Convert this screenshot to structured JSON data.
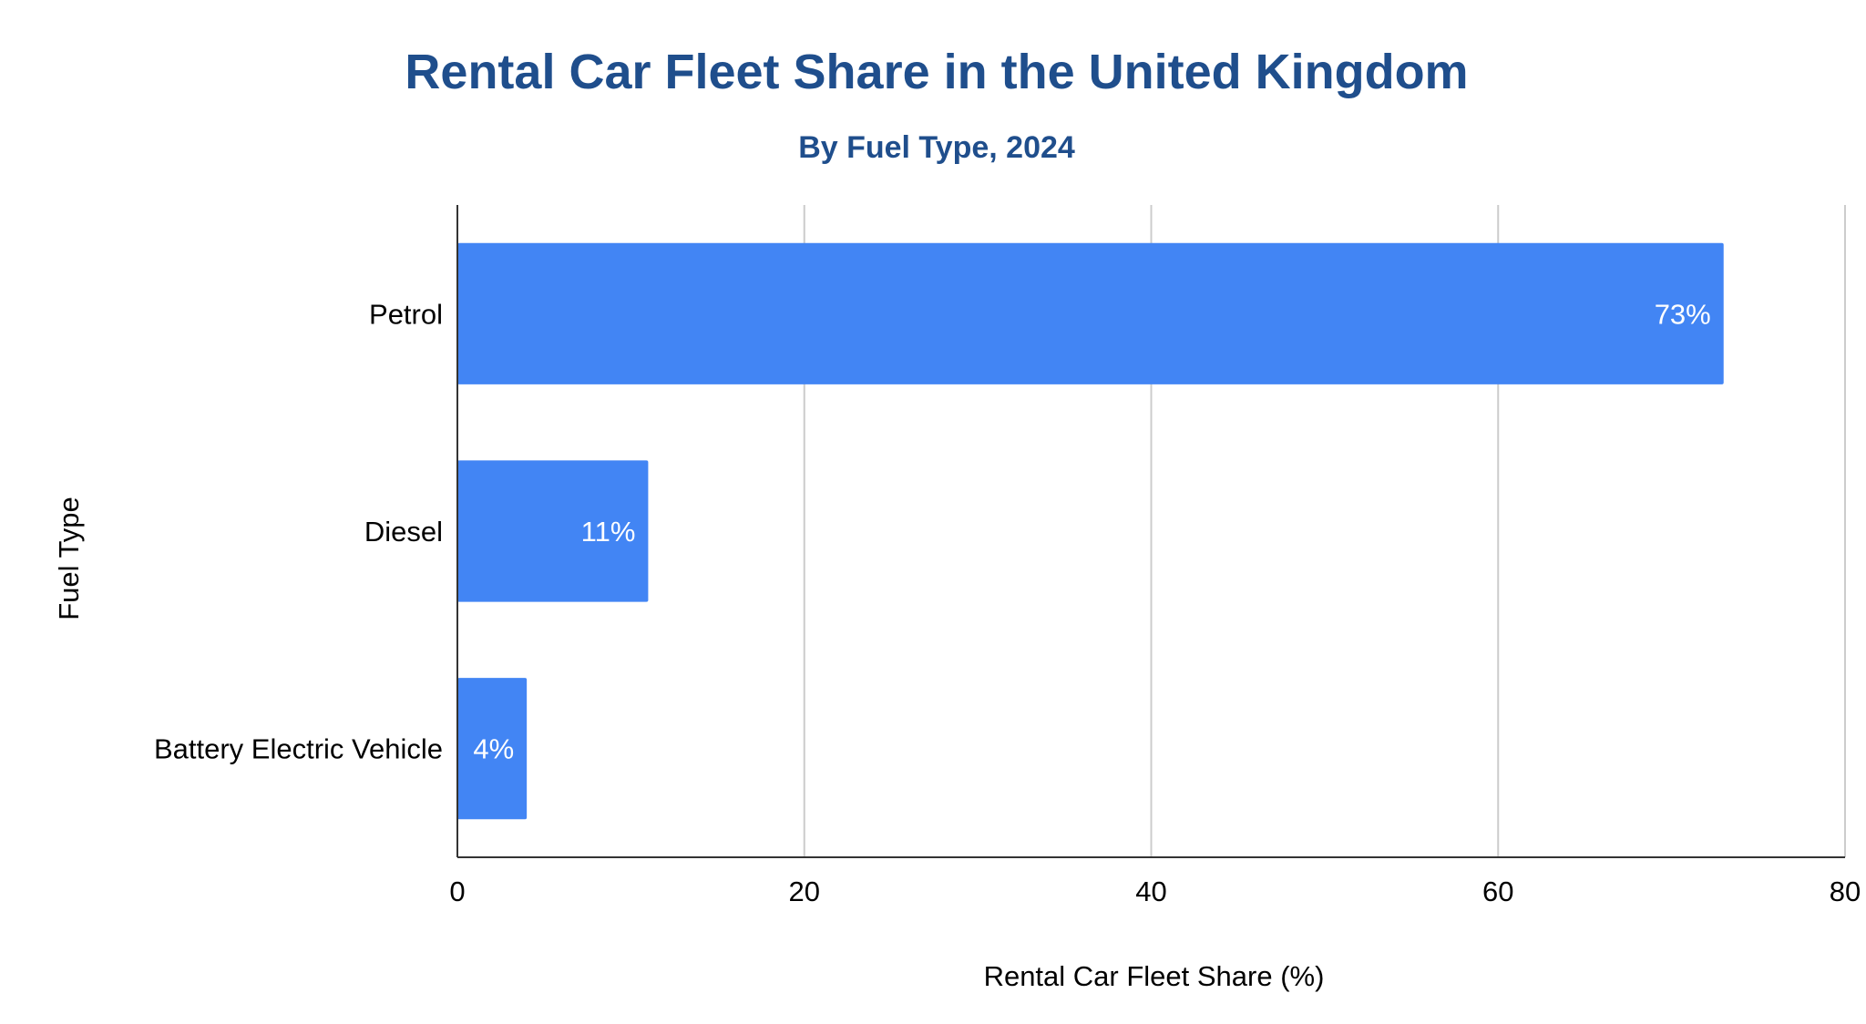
{
  "chart_data": {
    "type": "bar",
    "orientation": "horizontal",
    "title": "Rental Car Fleet Share in the United Kingdom",
    "subtitle": "By Fuel Type, 2024",
    "xlabel": "Rental Car Fleet Share (%)",
    "ylabel": "Fuel Type",
    "categories": [
      "Petrol",
      "Diesel",
      "Battery Electric Vehicle"
    ],
    "values": [
      73,
      11,
      4
    ],
    "data_labels": [
      "73%",
      "11%",
      "4%"
    ],
    "xlim": [
      0,
      80
    ],
    "xticks": [
      0,
      20,
      40,
      60,
      80
    ],
    "xtick_labels": [
      "0",
      "20",
      "40",
      "60",
      "80"
    ],
    "grid": "vertical",
    "legend": "none",
    "colors": {
      "bar": "#4285f4",
      "title": "#1f4e8c",
      "grid": "#cccccc",
      "axis": "#333333",
      "bar_label": "#ffffff"
    }
  }
}
